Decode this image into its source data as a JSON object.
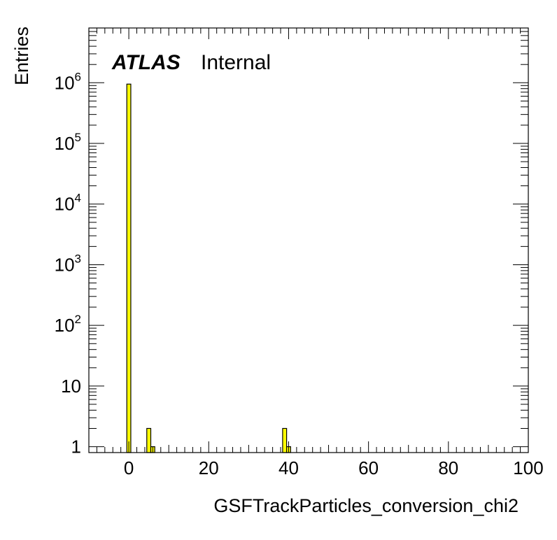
{
  "chart_data": {
    "type": "bar",
    "style": "histogram",
    "xlabel": "GSFTrackParticles_conversion_chi2",
    "ylabel": "Entries",
    "label_bold": "ATLAS",
    "label_text": "Internal",
    "xlim": [
      -10,
      100
    ],
    "ylim": [
      0.8,
      8000000
    ],
    "yscale": "log",
    "bin_width": 1,
    "fill_color": "#ffff00",
    "edge_color": "#000000",
    "x_ticks": [
      "0",
      "20",
      "40",
      "60",
      "80",
      "100"
    ],
    "x_tick_values": [
      0,
      20,
      40,
      60,
      80,
      100
    ],
    "y_ticks": [
      {
        "value": 1,
        "base": "1",
        "exp": ""
      },
      {
        "value": 10,
        "base": "10",
        "exp": ""
      },
      {
        "value": 100,
        "base": "10",
        "exp": "2"
      },
      {
        "value": 1000,
        "base": "10",
        "exp": "3"
      },
      {
        "value": 10000,
        "base": "10",
        "exp": "4"
      },
      {
        "value": 100000,
        "base": "10",
        "exp": "5"
      },
      {
        "value": 1000000,
        "base": "10",
        "exp": "6"
      }
    ],
    "bins": [
      {
        "x": 0,
        "value": 950000
      },
      {
        "x": 5,
        "value": 2
      },
      {
        "x": 6,
        "value": 1
      },
      {
        "x": 39,
        "value": 2
      },
      {
        "x": 40,
        "value": 1
      }
    ]
  }
}
